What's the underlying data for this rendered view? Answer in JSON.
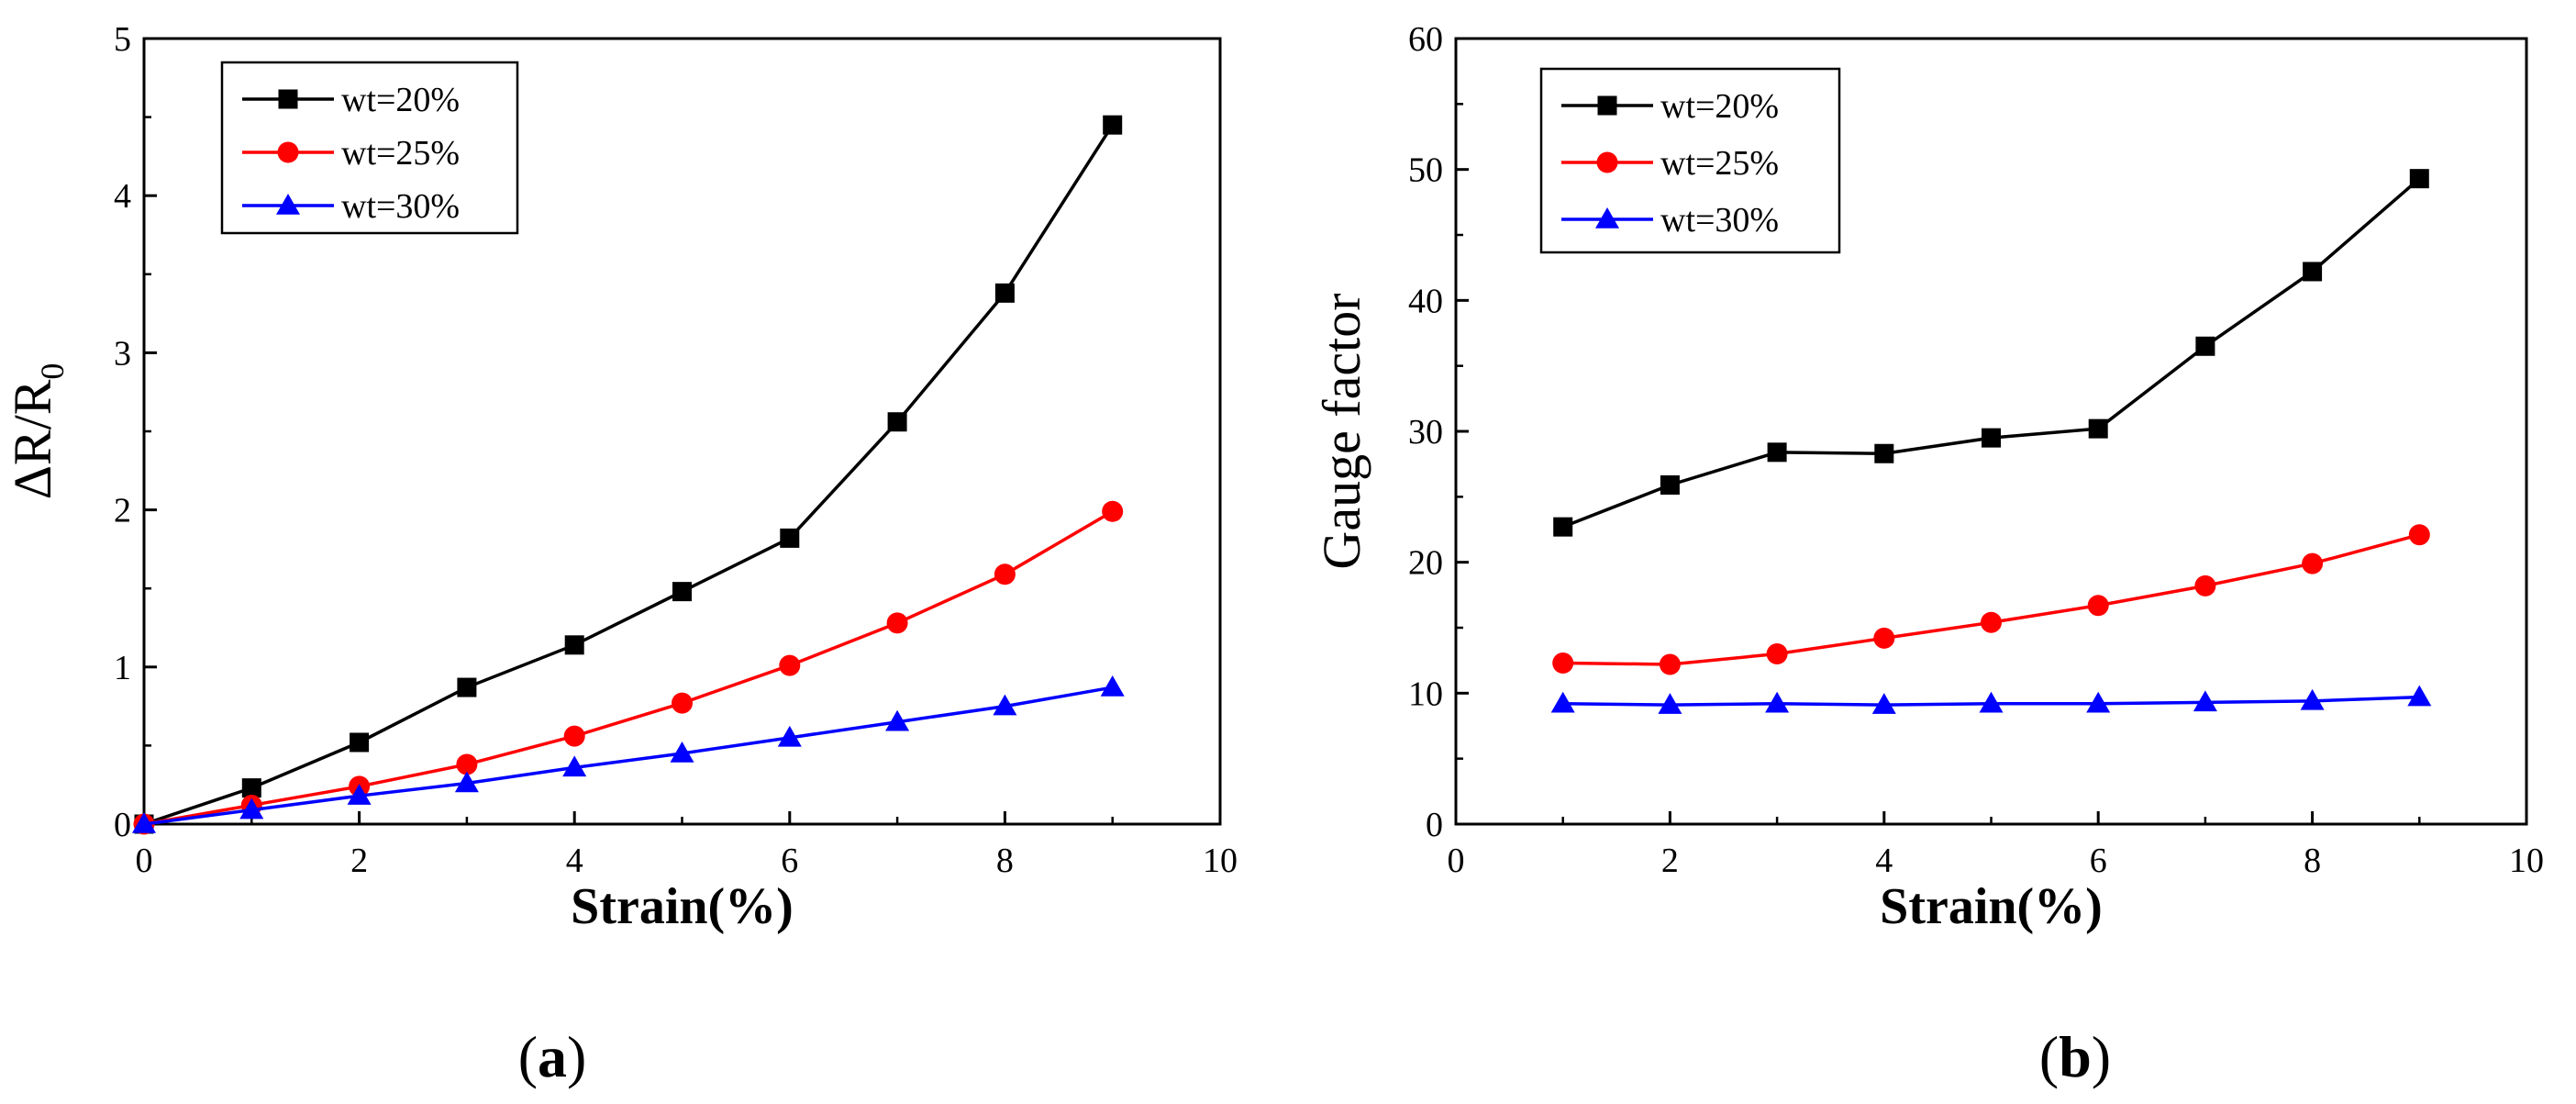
{
  "figure": {
    "panels": [
      {
        "label_open": "(",
        "label_letter": "a",
        "label_close": ")"
      },
      {
        "label_open": "(",
        "label_letter": "b",
        "label_close": ")"
      }
    ]
  },
  "chart_data": [
    {
      "type": "line",
      "xlabel": "Strain(%)",
      "ylabel_main": "ΔR/R",
      "ylabel_sub": "0",
      "xlim": [
        0,
        10
      ],
      "ylim": [
        0,
        5
      ],
      "xticks": [
        0,
        2,
        4,
        6,
        8,
        10
      ],
      "yticks": [
        0,
        1,
        2,
        3,
        4,
        5
      ],
      "legend_position": "top-left",
      "series": [
        {
          "name": "wt=20%",
          "marker": "square",
          "color": "#000000",
          "x": [
            0,
            1,
            2,
            3,
            4,
            5,
            6,
            7,
            8,
            9
          ],
          "values": [
            0,
            0.23,
            0.52,
            0.87,
            1.14,
            1.48,
            1.82,
            2.56,
            3.38,
            4.45
          ]
        },
        {
          "name": "wt=25%",
          "marker": "circle",
          "color": "#ff0000",
          "x": [
            0,
            1,
            2,
            3,
            4,
            5,
            6,
            7,
            8,
            9
          ],
          "values": [
            0,
            0.12,
            0.24,
            0.38,
            0.56,
            0.77,
            1.01,
            1.28,
            1.59,
            1.99
          ]
        },
        {
          "name": "wt=30%",
          "marker": "triangle",
          "color": "#0000ff",
          "x": [
            0,
            1,
            2,
            3,
            4,
            5,
            6,
            7,
            8,
            9
          ],
          "values": [
            0,
            0.09,
            0.18,
            0.26,
            0.36,
            0.45,
            0.55,
            0.65,
            0.75,
            0.87
          ]
        }
      ]
    },
    {
      "type": "line",
      "xlabel": "Strain(%)",
      "ylabel_main": "Gauge factor",
      "ylabel_sub": "",
      "xlim": [
        0,
        10
      ],
      "ylim": [
        0,
        60
      ],
      "xticks": [
        0,
        2,
        4,
        6,
        8,
        10
      ],
      "yticks": [
        0,
        10,
        20,
        30,
        40,
        50,
        60
      ],
      "legend_position": "top-left",
      "series": [
        {
          "name": "wt=20%",
          "marker": "square",
          "color": "#000000",
          "x": [
            1,
            2,
            3,
            4,
            5,
            6,
            7,
            8,
            9
          ],
          "values": [
            22.7,
            25.9,
            28.4,
            28.3,
            29.5,
            30.2,
            36.5,
            42.2,
            49.3
          ]
        },
        {
          "name": "wt=25%",
          "marker": "circle",
          "color": "#ff0000",
          "x": [
            1,
            2,
            3,
            4,
            5,
            6,
            7,
            8,
            9
          ],
          "values": [
            12.3,
            12.2,
            13.0,
            14.2,
            15.4,
            16.7,
            18.2,
            19.9,
            22.1
          ]
        },
        {
          "name": "wt=30%",
          "marker": "triangle",
          "color": "#0000ff",
          "x": [
            1,
            2,
            3,
            4,
            5,
            6,
            7,
            8,
            9
          ],
          "values": [
            9.2,
            9.1,
            9.2,
            9.1,
            9.2,
            9.2,
            9.3,
            9.4,
            9.7
          ]
        }
      ]
    }
  ]
}
